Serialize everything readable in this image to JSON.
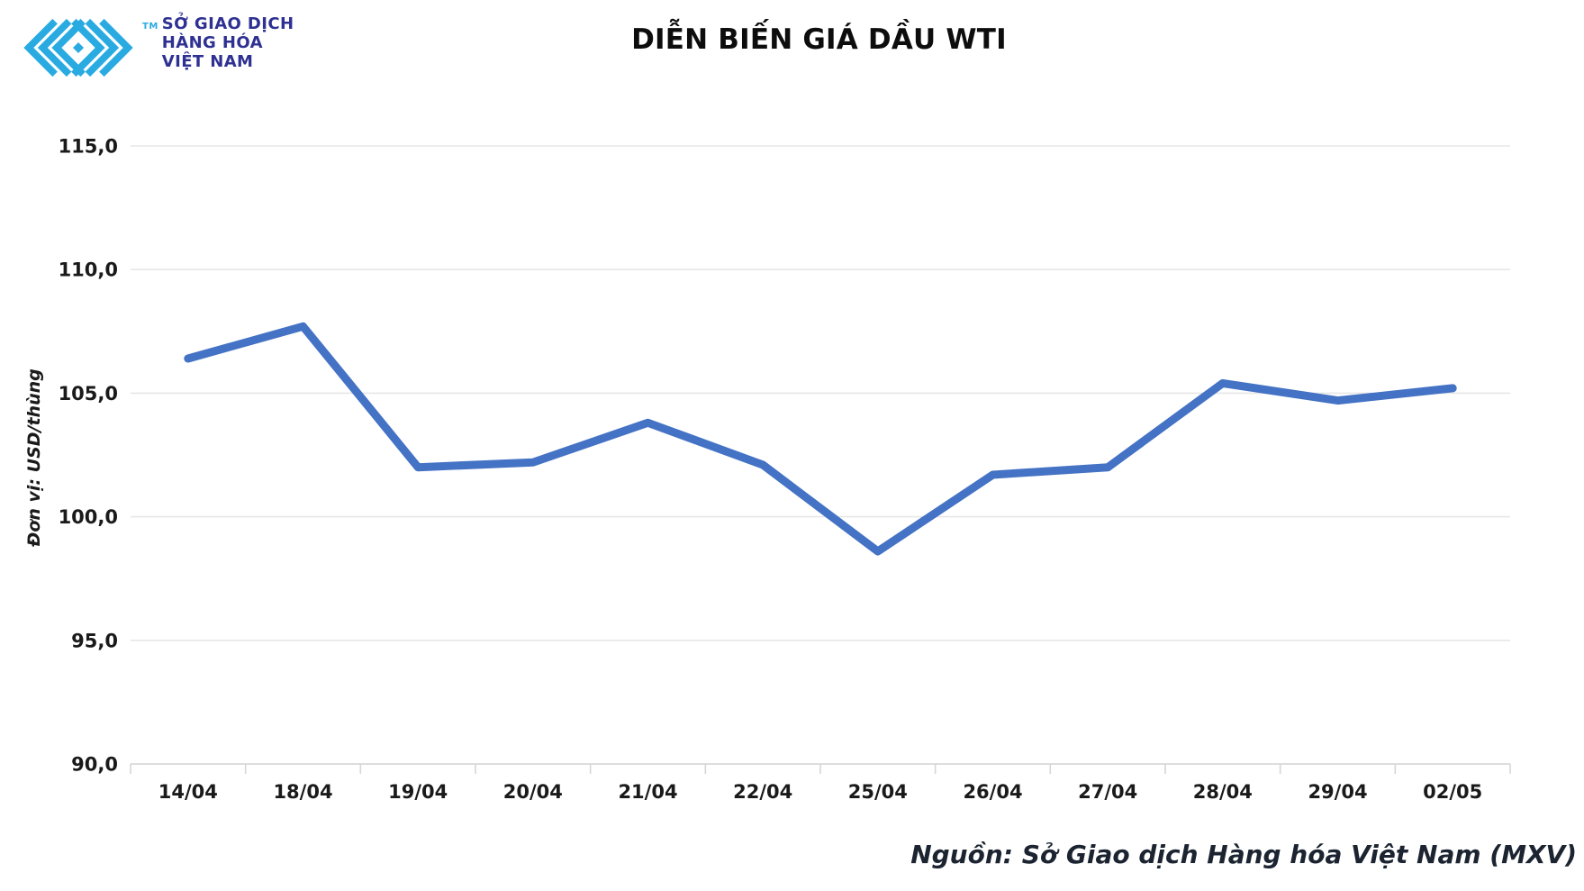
{
  "header": {
    "logo": {
      "lines": [
        "SỞ GIAO DỊCH",
        "HÀNG HÓA",
        "VIỆT NAM"
      ],
      "tm": "TM"
    },
    "title": "DIỄN BIẾN GIÁ DẦU WTI"
  },
  "chart_data": {
    "type": "line",
    "title": "DIỄN BIẾN GIÁ DẦU WTI",
    "categories": [
      "14/04",
      "18/04",
      "19/04",
      "20/04",
      "21/04",
      "22/04",
      "25/04",
      "26/04",
      "27/04",
      "28/04",
      "29/04",
      "02/05"
    ],
    "values": [
      106.4,
      107.7,
      102.0,
      102.2,
      103.8,
      102.1,
      98.6,
      101.7,
      102.0,
      105.4,
      104.7,
      105.2
    ],
    "xlabel": "",
    "ylabel": "Đơn vị: USD/thùng",
    "ylim": [
      90,
      115
    ],
    "yticks": [
      {
        "value": 90,
        "label": "90,0"
      },
      {
        "value": 95,
        "label": "95,0"
      },
      {
        "value": 100,
        "label": "100,0"
      },
      {
        "value": 105,
        "label": "105,0"
      },
      {
        "value": 110,
        "label": "110,0"
      },
      {
        "value": 115,
        "label": "115,0"
      }
    ],
    "grid": true,
    "legend": "none",
    "line_color": "#4472C4"
  },
  "footer": {
    "source": "Nguồn: Sở Giao dịch Hàng hóa Việt Nam (MXV)"
  },
  "colors": {
    "line": "#4472C4",
    "grid": "#E7E7E7",
    "axis": "#D6D6D6",
    "logo_blue": "#29ABE2",
    "logo_navy": "#2E3192",
    "title_text": "#0D0D0D"
  }
}
